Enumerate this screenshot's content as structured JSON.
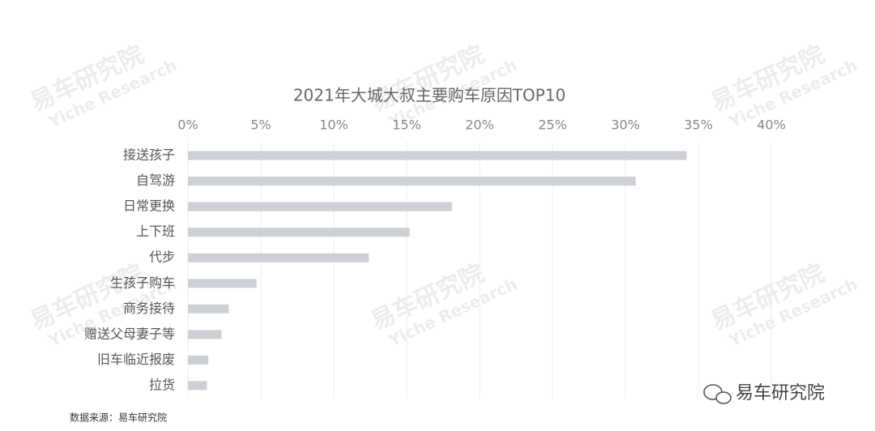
{
  "chart_data": {
    "type": "hbar",
    "title": "2021年大城大叔主要购车原因TOP10",
    "categories": [
      "接送孩子",
      "自驾游",
      "日常更换",
      "上下班",
      "代步",
      "生孩子购车",
      "商务接待",
      "赠送父母妻子等",
      "旧车临近报废",
      "拉货"
    ],
    "values": [
      34.2,
      30.7,
      18.1,
      15.2,
      12.4,
      4.7,
      2.8,
      2.3,
      1.4,
      1.3
    ],
    "color": "#cdd0d4",
    "xlim": [
      0,
      40
    ],
    "xticks": [
      {
        "value": 0,
        "label": "0%"
      },
      {
        "value": 5,
        "label": "5%"
      },
      {
        "value": 10,
        "label": "10%"
      },
      {
        "value": 15,
        "label": "15%"
      },
      {
        "value": 20,
        "label": "20%"
      },
      {
        "value": 25,
        "label": "25%"
      },
      {
        "value": 30,
        "label": "30%"
      },
      {
        "value": 35,
        "label": "35%"
      },
      {
        "value": 40,
        "label": "40%"
      }
    ],
    "grid": true,
    "source": "数据来源：易车研究院",
    "logo": "易车研究院",
    "watermark": {
      "cn": "易车研究院",
      "en": "Yiche Research"
    }
  }
}
